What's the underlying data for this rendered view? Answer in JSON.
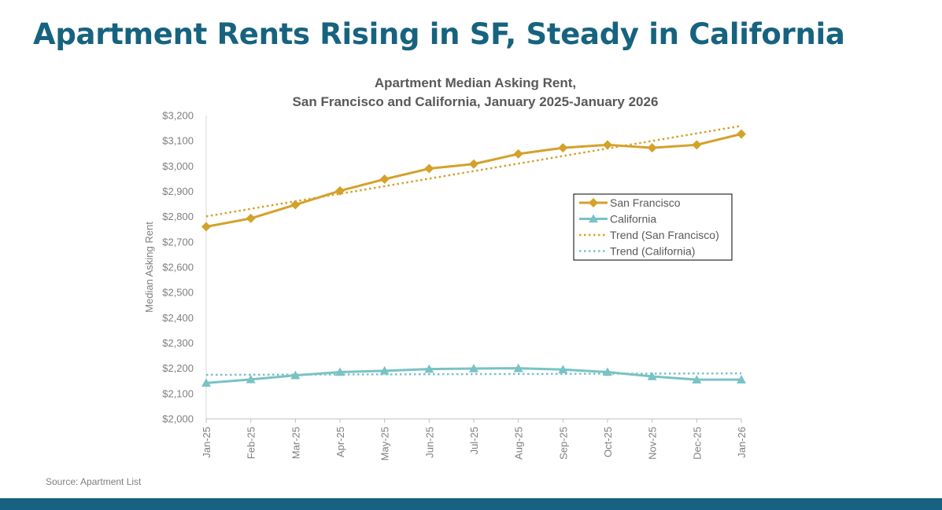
{
  "slide": {
    "title": "Apartment Rents Rising in SF, Steady in California",
    "source": "Source: Apartment List"
  },
  "colors": {
    "title": "#17637f",
    "footer": "#17637f",
    "sf": "#d4a12a",
    "ca": "#79c2c6"
  },
  "chart_data": {
    "type": "line",
    "title": [
      "Apartment Median Asking Rent,",
      "San Francisco and California, January 2025-January 2026"
    ],
    "xlabel": "",
    "ylabel": "Median Asking Rent",
    "categories": [
      "Jan-25",
      "Feb-25",
      "Mar-25",
      "Apr-25",
      "May-25",
      "Jun-25",
      "Jul-25",
      "Aug-25",
      "Sep-25",
      "Oct-25",
      "Nov-25",
      "Dec-25",
      "Jan-26"
    ],
    "ylim": [
      2000,
      3200
    ],
    "ytick_step": 100,
    "yticks": [
      "$2,000",
      "$2,100",
      "$2,200",
      "$2,300",
      "$2,400",
      "$2,500",
      "$2,600",
      "$2,700",
      "$2,800",
      "$2,900",
      "$3,000",
      "$3,100",
      "$3,200"
    ],
    "grid": false,
    "legend_position": "right",
    "series": [
      {
        "name": "San Francisco",
        "color": "#d4a12a",
        "marker": "diamond",
        "values": [
          2760,
          2793,
          2847,
          2902,
          2948,
          2990,
          3008,
          3048,
          3072,
          3084,
          3072,
          3084,
          3127
        ]
      },
      {
        "name": "California",
        "color": "#79c2c6",
        "marker": "triangle",
        "values": [
          2142,
          2156,
          2172,
          2185,
          2190,
          2197,
          2199,
          2200,
          2195,
          2185,
          2168,
          2155,
          2155
        ]
      }
    ],
    "trends": [
      {
        "name": "Trend (San Francisco)",
        "color": "#d4a12a",
        "start": 2801,
        "end": 3159
      },
      {
        "name": "Trend (California)",
        "color": "#79c2c6",
        "start": 2174,
        "end": 2180
      }
    ]
  }
}
